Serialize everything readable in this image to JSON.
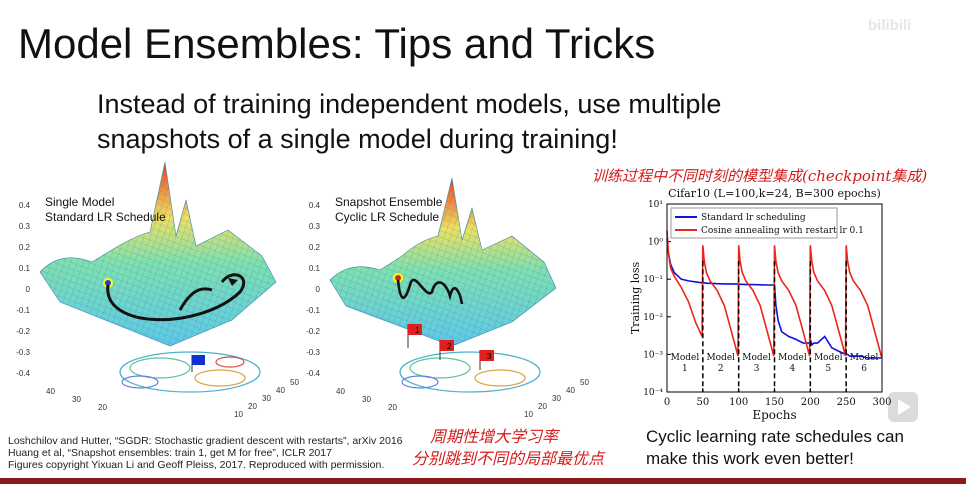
{
  "header": {
    "title": "Model Ensembles: Tips and Tricks",
    "watermark": "bilibili"
  },
  "body": {
    "lines": [
      "Instead of training independent models, use multiple",
      "snapshots of a single model during training!"
    ]
  },
  "notes": {
    "top": "训练过程中不同时刻的模型集成(checkpoint集成)",
    "bottom": [
      "周期性增大学习率",
      "分别跳到不同的局部最优点"
    ]
  },
  "surface_plots": [
    {
      "title_lines": [
        "Single Model",
        "Standard LR Schedule"
      ],
      "z_ticks": [
        "0.4",
        "0.3",
        "0.2",
        "0.1",
        "0",
        "-0.1",
        "-0.2",
        "-0.3",
        "-0.4"
      ],
      "depth_ticks": [
        "40",
        "30",
        "20"
      ],
      "side_ticks": [
        "50",
        "40",
        "30",
        "20",
        "10"
      ]
    },
    {
      "title_lines": [
        "Snapshot Ensemble",
        "Cyclic LR Schedule"
      ],
      "z_ticks": [
        "0.4",
        "0.3",
        "0.2",
        "0.1",
        "0",
        "-0.1",
        "-0.2",
        "-0.3",
        "-0.4"
      ],
      "depth_ticks": [
        "40",
        "30",
        "20"
      ],
      "side_ticks": [
        "50",
        "40",
        "30",
        "20",
        "10"
      ],
      "flags": [
        "1",
        "2",
        "3"
      ]
    }
  ],
  "citations": [
    "Loshchilov and Hutter, “SGDR: Stochastic gradient descent with restarts”, arXiv 2016",
    "Huang et al, “Snapshot ensembles: train 1, get M for free”, ICLR 2017",
    "Figures copyright Yixuan Li and Geoff Pleiss, 2017. Reproduced with permission."
  ],
  "caption": [
    "Cyclic learning rate schedules can",
    "make this work even better!"
  ],
  "loss_chart": {
    "type": "line",
    "title": "Cifar10 (L=100,k=24, B=300 epochs)",
    "x_label": "Epochs",
    "y_label": "Training loss",
    "log_y": true,
    "legend": "top-left",
    "xlim": [
      0,
      300
    ],
    "ylim": [
      0.0001,
      10
    ],
    "xticks": [
      0,
      50,
      100,
      150,
      200,
      250,
      300
    ],
    "yticks": [
      {
        "value": 10,
        "label": "10¹"
      },
      {
        "value": 1,
        "label": "10⁰"
      },
      {
        "value": 0.1,
        "label": "10⁻¹"
      },
      {
        "value": 0.01,
        "label": "10⁻²"
      },
      {
        "value": 0.001,
        "label": "10⁻³"
      },
      {
        "value": 0.0001,
        "label": "10⁻⁴"
      }
    ],
    "model_boundaries": [
      50,
      100,
      150,
      200,
      250
    ],
    "model_labels": [
      [
        "Model",
        "1"
      ],
      [
        "Model",
        "2"
      ],
      [
        "Model",
        "3"
      ],
      [
        "Model",
        "4"
      ],
      [
        "Model",
        "5"
      ],
      [
        "Model",
        "6"
      ]
    ],
    "x": [
      0,
      2,
      5,
      10,
      20,
      30,
      40,
      49,
      50,
      52,
      55,
      60,
      70,
      80,
      90,
      99,
      100,
      102,
      105,
      110,
      120,
      130,
      140,
      149,
      150,
      152,
      155,
      160,
      170,
      180,
      190,
      199,
      200,
      202,
      205,
      210,
      220,
      230,
      240,
      249,
      250,
      252,
      255,
      260,
      270,
      280,
      290,
      299,
      300
    ],
    "series": [
      {
        "name": "Standard lr scheduling",
        "color": "#1010e0",
        "values": [
          1.2,
          0.5,
          0.25,
          0.15,
          0.1,
          0.09,
          0.085,
          0.08,
          0.08,
          0.08,
          0.078,
          0.078,
          0.076,
          0.075,
          0.075,
          0.074,
          0.074,
          0.073,
          0.073,
          0.072,
          0.072,
          0.071,
          0.07,
          0.07,
          0.07,
          0.02,
          0.008,
          0.004,
          0.003,
          0.0025,
          0.002,
          0.002,
          0.0025,
          0.0018,
          0.002,
          0.002,
          0.003,
          0.0015,
          0.0012,
          0.001,
          0.001,
          0.001,
          0.0009,
          0.0009,
          0.0009,
          0.0008,
          0.0008,
          0.0008,
          0.0008
        ]
      },
      {
        "name": "Cosine annealing with restart lr 0.1",
        "color": "#e8261c",
        "values": [
          2,
          0.5,
          0.2,
          0.12,
          0.06,
          0.025,
          0.007,
          0.003,
          0.8,
          0.3,
          0.15,
          0.09,
          0.05,
          0.02,
          0.004,
          0.0009,
          0.8,
          0.3,
          0.15,
          0.09,
          0.05,
          0.02,
          0.004,
          0.0009,
          0.8,
          0.3,
          0.15,
          0.09,
          0.05,
          0.02,
          0.004,
          0.0009,
          0.8,
          0.3,
          0.15,
          0.09,
          0.05,
          0.02,
          0.004,
          0.0009,
          0.8,
          0.3,
          0.15,
          0.09,
          0.05,
          0.02,
          0.004,
          0.0009,
          0.0009
        ]
      }
    ]
  }
}
